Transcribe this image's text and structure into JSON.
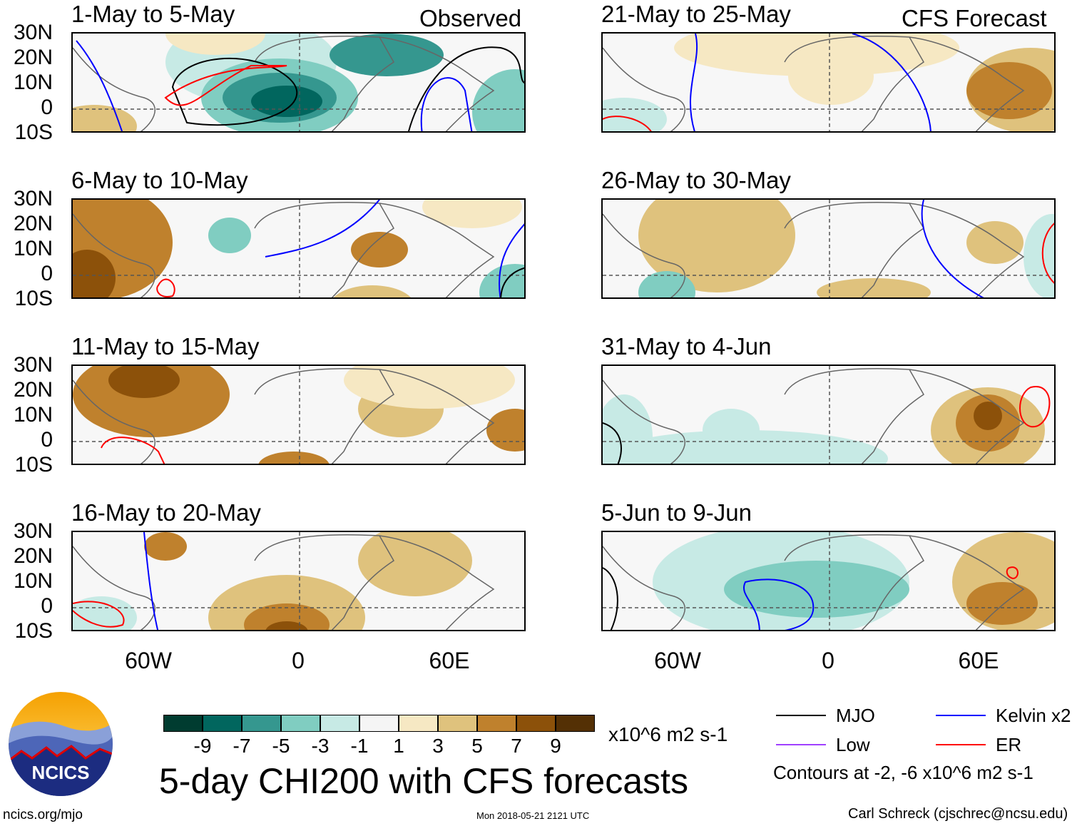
{
  "labels": {
    "observed": "Observed",
    "forecast": "CFS Forecast",
    "units": "x10^6 m2 s-1",
    "main_title": "5-day CHI200 with CFS forecasts",
    "site": "ncics.org/mjo",
    "timestamp": "Mon 2018-05-21 2121 UTC",
    "author": "Carl Schreck (cjschrec@ncsu.edu)",
    "contours": "Contours at -2, -6 x10^6 m2 s-1",
    "logo_text": "NCICS"
  },
  "panels_left": [
    "1-May to 5-May",
    "6-May to 10-May",
    "11-May to 15-May",
    "16-May to 20-May"
  ],
  "panels_right": [
    "21-May to 25-May",
    "26-May to 30-May",
    "31-May to 4-Jun",
    "5-Jun to 9-Jun"
  ],
  "lat_ticks": [
    "30N",
    "20N",
    "10N",
    "0",
    "10S"
  ],
  "lon_ticks": [
    "60W",
    "0",
    "60E"
  ],
  "colorbar": {
    "ticks": [
      "-9",
      "-7",
      "-5",
      "-3",
      "-1",
      "1",
      "3",
      "5",
      "7",
      "9"
    ],
    "colors": [
      "#003c30",
      "#01665e",
      "#35978f",
      "#80cdc1",
      "#c7eae5",
      "#f5f5f5",
      "#f6e8c3",
      "#dfc27d",
      "#bf812d",
      "#8c510a",
      "#543005"
    ]
  },
  "legend": [
    {
      "label": "MJO",
      "color": "#000000"
    },
    {
      "label": "Kelvin x2",
      "color": "#0000ff"
    },
    {
      "label": "Low",
      "color": "#a040ff"
    },
    {
      "label": "ER",
      "color": "#ff0000"
    }
  ]
}
